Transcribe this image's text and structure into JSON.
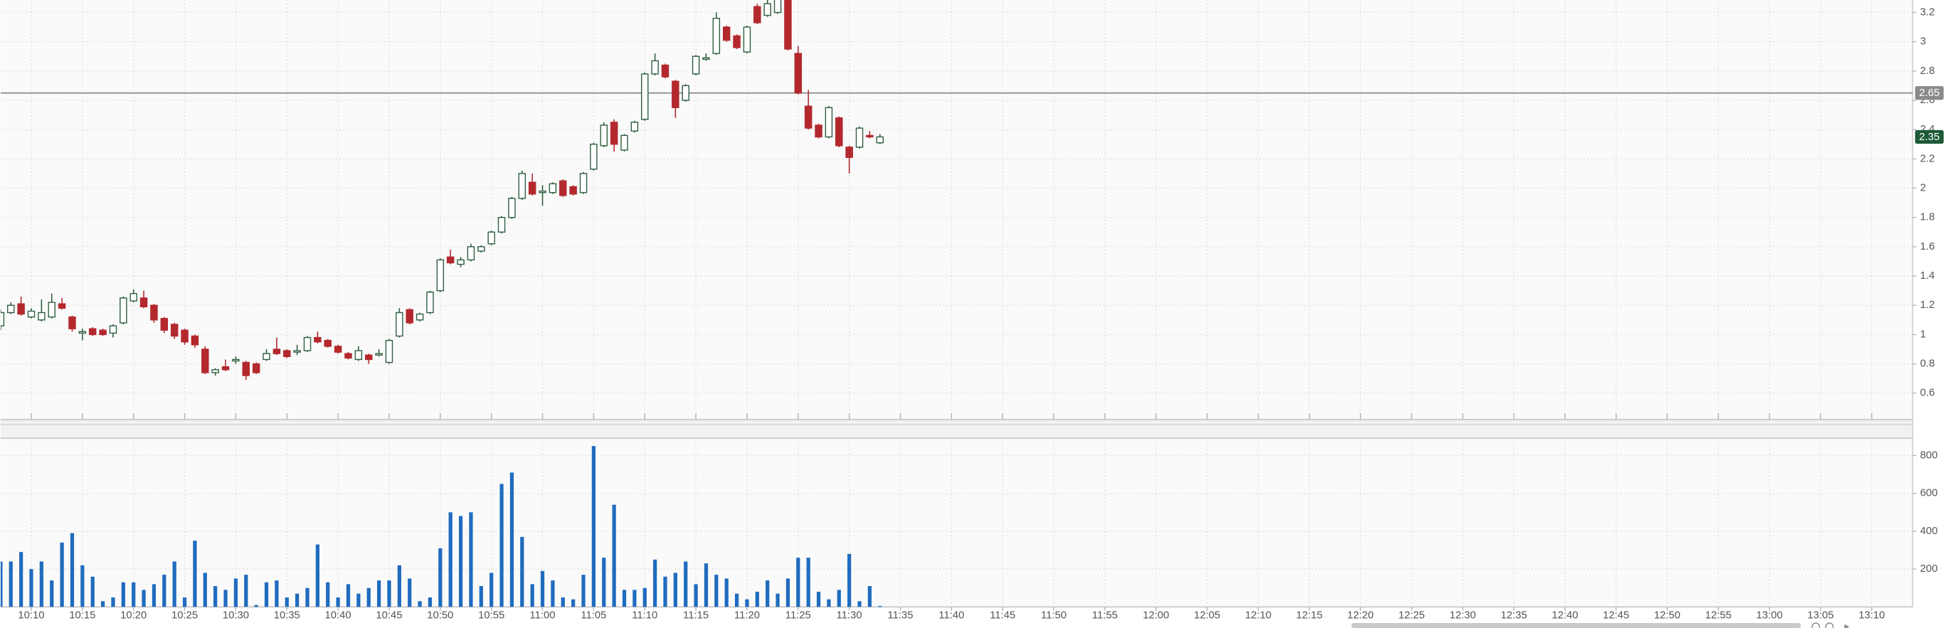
{
  "chart_data": {
    "type": "candlestick",
    "x": [
      "10:07",
      "10:08",
      "10:09",
      "10:10",
      "10:11",
      "10:12",
      "10:13",
      "10:14",
      "10:15",
      "10:16",
      "10:17",
      "10:18",
      "10:19",
      "10:20",
      "10:21",
      "10:22",
      "10:23",
      "10:24",
      "10:25",
      "10:26",
      "10:27",
      "10:28",
      "10:29",
      "10:30",
      "10:31",
      "10:32",
      "10:33",
      "10:34",
      "10:35",
      "10:36",
      "10:37",
      "10:38",
      "10:39",
      "10:40",
      "10:41",
      "10:42",
      "10:43",
      "10:44",
      "10:45",
      "10:46",
      "10:47",
      "10:48",
      "10:49",
      "10:50",
      "10:51",
      "10:52",
      "10:53",
      "10:54",
      "10:55",
      "10:56",
      "10:57",
      "10:58",
      "10:59",
      "11:00",
      "11:01",
      "11:02",
      "11:03",
      "11:04",
      "11:05",
      "11:06",
      "11:07",
      "11:08",
      "11:09",
      "11:10",
      "11:11",
      "11:12",
      "11:13",
      "11:14",
      "11:15",
      "11:16",
      "11:17",
      "11:18",
      "11:19",
      "11:20",
      "11:21",
      "11:22",
      "11:23",
      "11:24",
      "11:25",
      "11:26",
      "11:27",
      "11:28",
      "11:29",
      "11:30",
      "11:31",
      "11:32",
      "11:33"
    ],
    "open": [
      1.06,
      1.15,
      1.21,
      1.12,
      1.1,
      1.12,
      1.21,
      1.12,
      1.01,
      1.04,
      1.03,
      1.01,
      1.08,
      1.23,
      1.25,
      1.2,
      1.11,
      1.07,
      1.03,
      0.99,
      0.9,
      0.74,
      0.78,
      0.82,
      0.81,
      0.8,
      0.83,
      0.9,
      0.89,
      0.88,
      0.89,
      0.98,
      0.96,
      0.92,
      0.87,
      0.83,
      0.86,
      0.86,
      0.81,
      0.99,
      1.17,
      1.1,
      1.15,
      1.3,
      1.53,
      1.48,
      1.51,
      1.57,
      1.62,
      1.7,
      1.8,
      1.93,
      2.04,
      1.97,
      1.97,
      2.05,
      2.01,
      1.97,
      2.13,
      2.29,
      2.45,
      2.26,
      2.39,
      2.47,
      2.78,
      2.84,
      2.73,
      2.6,
      2.78,
      2.88,
      2.92,
      3.1,
      3.04,
      2.93,
      3.24,
      3.18,
      3.2,
      3.3,
      2.92,
      2.56,
      2.43,
      2.35,
      2.48,
      2.28,
      2.28,
      2.36,
      2.31
    ],
    "high": [
      1.17,
      1.22,
      1.26,
      1.18,
      1.24,
      1.28,
      1.25,
      1.13,
      1.04,
      1.05,
      1.04,
      1.07,
      1.26,
      1.31,
      1.3,
      1.21,
      1.12,
      1.08,
      1.04,
      1.0,
      0.92,
      0.77,
      0.83,
      0.85,
      0.82,
      0.81,
      0.9,
      0.98,
      0.9,
      0.93,
      0.99,
      1.02,
      0.97,
      0.93,
      0.88,
      0.92,
      0.87,
      0.9,
      0.97,
      1.18,
      1.18,
      1.15,
      1.3,
      1.52,
      1.58,
      1.53,
      1.62,
      1.61,
      1.71,
      1.81,
      1.94,
      2.12,
      2.1,
      2.02,
      2.04,
      2.06,
      2.02,
      2.11,
      2.31,
      2.45,
      2.47,
      2.37,
      2.46,
      2.79,
      2.92,
      2.85,
      2.74,
      2.71,
      2.91,
      2.92,
      3.2,
      3.11,
      3.05,
      3.11,
      3.26,
      3.3,
      3.31,
      3.35,
      2.97,
      2.67,
      2.44,
      2.56,
      2.49,
      2.29,
      2.42,
      2.39,
      2.37
    ],
    "low": [
      1.03,
      1.14,
      1.13,
      1.11,
      1.09,
      1.11,
      1.17,
      1.02,
      0.96,
      0.99,
      0.99,
      0.98,
      1.07,
      1.22,
      1.18,
      1.08,
      1.01,
      0.97,
      0.93,
      0.91,
      0.73,
      0.72,
      0.75,
      0.8,
      0.69,
      0.73,
      0.82,
      0.86,
      0.84,
      0.86,
      0.88,
      0.94,
      0.91,
      0.87,
      0.83,
      0.82,
      0.8,
      0.85,
      0.8,
      0.98,
      1.07,
      1.09,
      1.14,
      1.29,
      1.48,
      1.46,
      1.5,
      1.56,
      1.61,
      1.69,
      1.79,
      1.92,
      1.95,
      1.88,
      1.96,
      1.94,
      1.95,
      1.96,
      2.12,
      2.28,
      2.25,
      2.25,
      2.38,
      2.46,
      2.77,
      2.75,
      2.48,
      2.59,
      2.77,
      2.87,
      2.91,
      3.0,
      2.95,
      2.92,
      3.12,
      3.17,
      3.19,
      2.94,
      2.64,
      2.4,
      2.34,
      2.34,
      2.28,
      2.1,
      2.27,
      2.34,
      2.3
    ],
    "close": [
      1.15,
      1.2,
      1.14,
      1.16,
      1.15,
      1.22,
      1.18,
      1.04,
      1.02,
      1.0,
      1.0,
      1.06,
      1.25,
      1.28,
      1.19,
      1.1,
      1.03,
      0.99,
      0.95,
      0.93,
      0.74,
      0.76,
      0.76,
      0.83,
      0.72,
      0.74,
      0.87,
      0.87,
      0.85,
      0.89,
      0.98,
      0.95,
      0.92,
      0.88,
      0.84,
      0.89,
      0.83,
      0.87,
      0.96,
      1.15,
      1.08,
      1.14,
      1.29,
      1.51,
      1.49,
      1.51,
      1.6,
      1.6,
      1.7,
      1.8,
      1.93,
      2.1,
      1.96,
      1.98,
      2.03,
      1.95,
      1.96,
      2.1,
      2.3,
      2.43,
      2.3,
      2.36,
      2.45,
      2.78,
      2.87,
      2.76,
      2.55,
      2.7,
      2.9,
      2.89,
      3.16,
      3.01,
      2.96,
      3.1,
      3.13,
      3.26,
      3.3,
      2.95,
      2.65,
      2.41,
      2.35,
      2.55,
      2.29,
      2.21,
      2.41,
      2.35,
      2.35
    ],
    "up_color": "#2f5e40",
    "down_color": "#b3282d",
    "xlim": [
      "10:07",
      "13:14"
    ],
    "xticks": [
      "10:10",
      "10:15",
      "10:20",
      "10:25",
      "10:30",
      "10:35",
      "10:40",
      "10:45",
      "10:50",
      "10:55",
      "11:00",
      "11:05",
      "11:10",
      "11:15",
      "11:20",
      "11:25",
      "11:30",
      "11:35",
      "11:40",
      "11:45",
      "11:50",
      "11:55",
      "12:00",
      "12:05",
      "12:10",
      "12:15",
      "12:20",
      "12:25",
      "12:30",
      "12:35",
      "12:40",
      "12:45",
      "12:50",
      "12:55",
      "13:00",
      "13:05",
      "13:10"
    ],
    "ylim": [
      0.42,
      3.285
    ],
    "yticks": [
      0.6,
      0.8,
      1,
      1.2,
      1.4,
      1.6,
      1.8,
      2,
      2.2,
      2.4,
      2.6,
      2.8,
      3,
      3.2
    ],
    "grid": true,
    "price_line": 2.65,
    "last_price": 2.35,
    "price_line_color": "#8a8a8a",
    "last_price_color": "#1d5a38",
    "volume": {
      "type": "bar",
      "color": "#1f6cbf",
      "values": [
        240,
        240,
        290,
        200,
        240,
        140,
        340,
        390,
        220,
        160,
        30,
        50,
        130,
        130,
        90,
        120,
        170,
        240,
        50,
        350,
        180,
        110,
        90,
        150,
        170,
        10,
        130,
        140,
        50,
        70,
        100,
        330,
        130,
        50,
        120,
        70,
        100,
        140,
        140,
        220,
        150,
        30,
        50,
        310,
        500,
        480,
        500,
        110,
        180,
        650,
        710,
        370,
        120,
        190,
        140,
        50,
        40,
        170,
        850,
        260,
        540,
        90,
        90,
        100,
        250,
        160,
        180,
        240,
        120,
        230,
        170,
        150,
        70,
        40,
        80,
        140,
        70,
        150,
        260,
        260,
        80,
        40,
        90,
        280,
        30,
        110,
        5
      ],
      "ylim": [
        0,
        892
      ],
      "yticks": [
        200,
        400,
        600,
        800
      ]
    }
  }
}
